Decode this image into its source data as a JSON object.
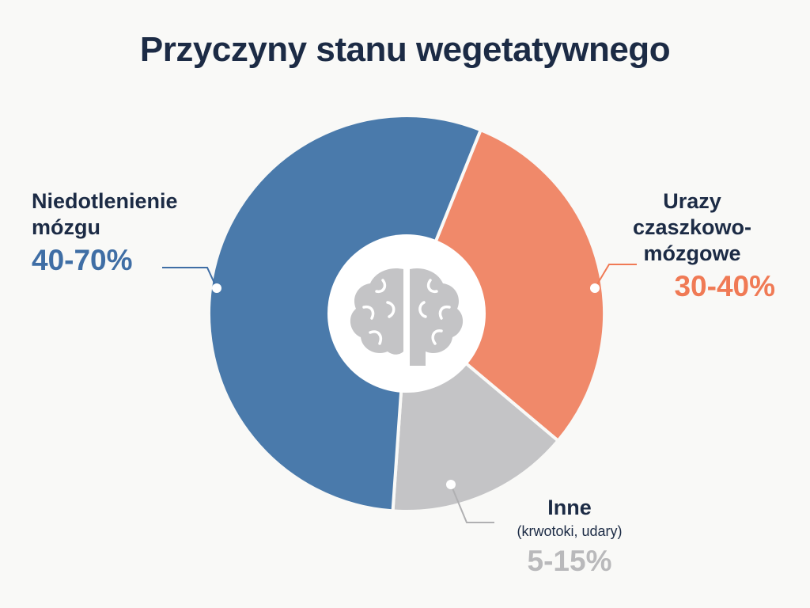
{
  "chart_data": {
    "type": "pie",
    "title": "Przyczyny stanu wegetatywnego",
    "donut": true,
    "center_icon": "brain-icon",
    "slices": [
      {
        "name": "Niedotlenienie mózgu",
        "name_lines": [
          "Niedotlenienie",
          "mózgu"
        ],
        "range_label": "40-70%",
        "range": [
          40,
          70
        ],
        "share": 55,
        "color": "#4a7aab"
      },
      {
        "name": "Urazy czaszkowo-mózgowe",
        "name_lines": [
          "Urazy",
          "czaszkowo-",
          "mózgowe"
        ],
        "range_label": "30-40%",
        "range": [
          30,
          40
        ],
        "share": 30,
        "color": "#f0896a"
      },
      {
        "name": "Inne",
        "name_lines": [
          "Inne"
        ],
        "subtitle": "(krwotoki, udary)",
        "range_label": "5-15%",
        "range": [
          5,
          15
        ],
        "share": 15,
        "color": "#c4c4c6"
      }
    ],
    "value_colors": [
      "#3f6ea5",
      "#f07a55",
      "#b9b9bb"
    ],
    "background": "#f9f9f7",
    "center_icon_color": "#c4c4c6"
  }
}
